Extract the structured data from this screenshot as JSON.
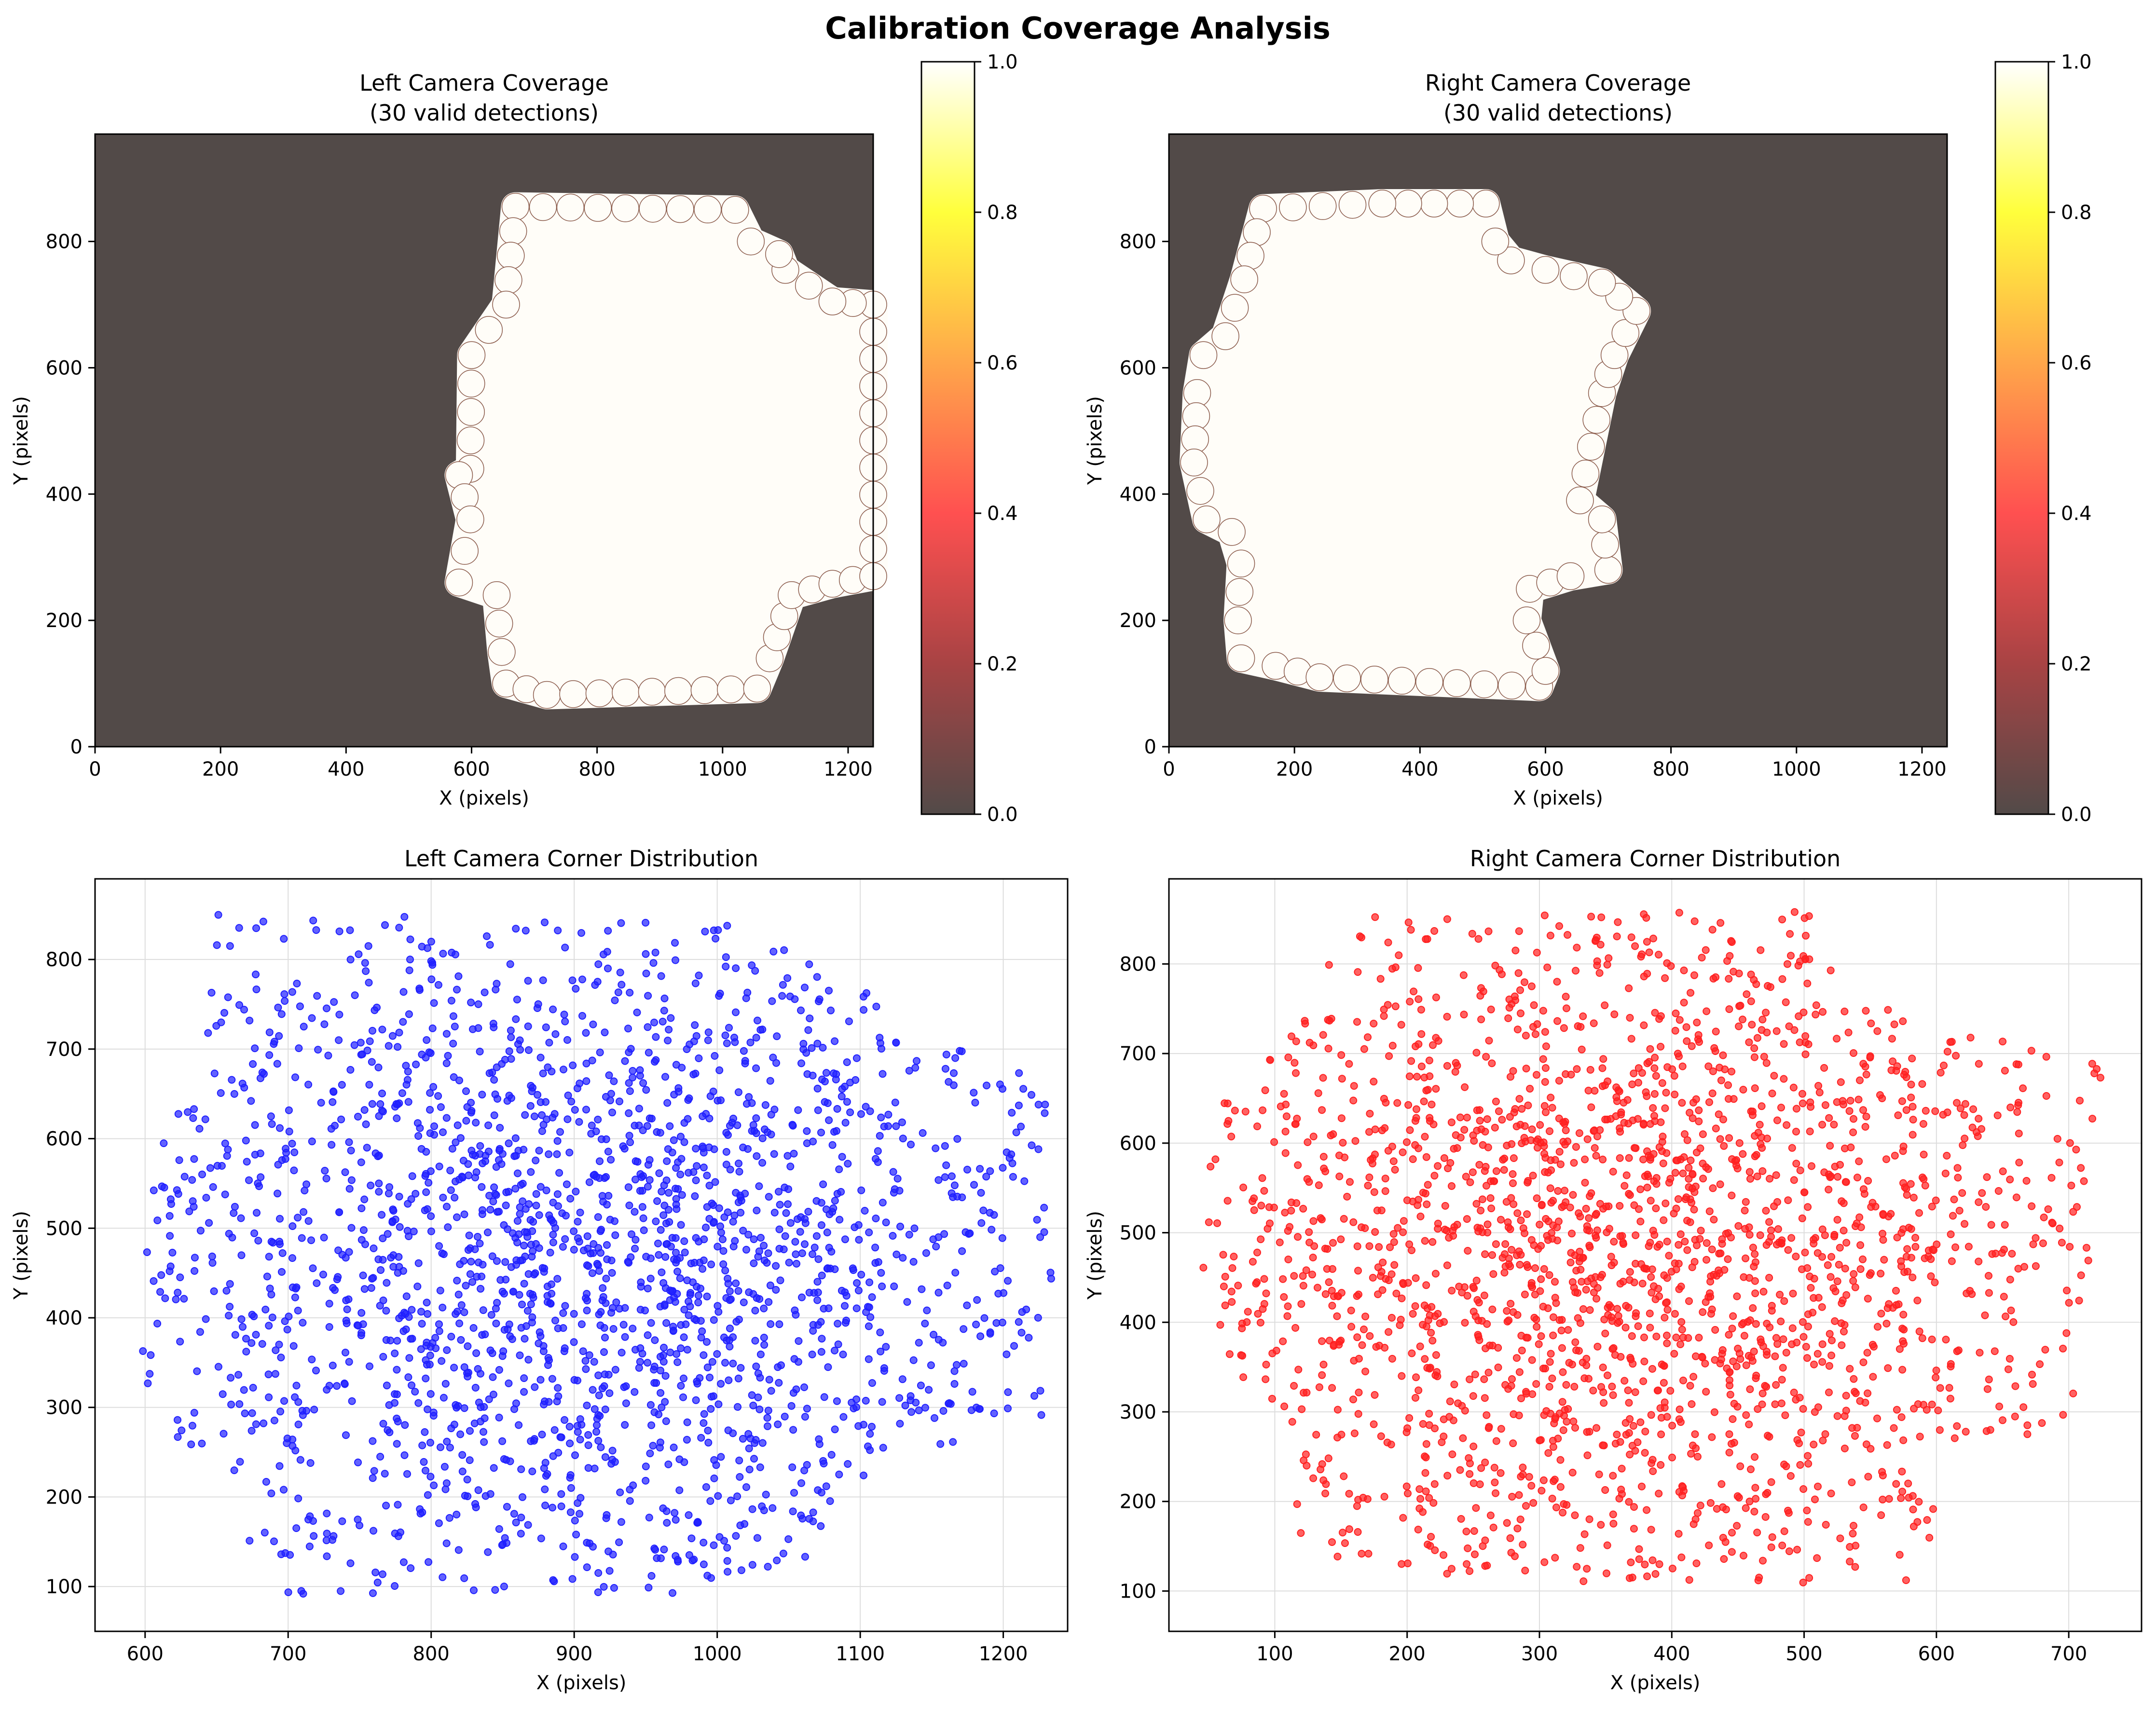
{
  "figure": {
    "suptitle": "Calibration Coverage Analysis"
  },
  "colors": {
    "background_dark": "#524a48",
    "coverage_fill": "#fffdf8",
    "left_points": "#1f1fff",
    "right_points": "#ff2020",
    "grid": "#dddddd",
    "colormap": [
      "#524a48",
      "#a84344",
      "#ff5050",
      "#ffa64a",
      "#ffff3c",
      "#ffffff"
    ]
  },
  "chart_data": [
    {
      "id": "left-coverage",
      "type": "heatmap",
      "title_line1": "Left Camera Coverage",
      "title_line2": "(30 valid detections)",
      "xlabel": "X (pixels)",
      "ylabel": "Y (pixels)",
      "xlim": [
        0,
        1240
      ],
      "ylim": [
        970,
        0
      ],
      "xticks": [
        0,
        200,
        400,
        600,
        800,
        1000,
        1200
      ],
      "yticks": [
        0,
        200,
        400,
        600,
        800
      ],
      "colorbar": {
        "ticks": [
          "0.0",
          "0.2",
          "0.4",
          "0.6",
          "0.8",
          "1.0"
        ],
        "range": [
          0,
          1
        ]
      },
      "coverage_polygon": [
        [
          655,
          100
        ],
        [
          720,
          82
        ],
        [
          1055,
          92
        ],
        [
          1075,
          140
        ],
        [
          1110,
          240
        ],
        [
          1175,
          258
        ],
        [
          1240,
          270
        ],
        [
          1240,
          700
        ],
        [
          1175,
          705
        ],
        [
          1100,
          755
        ],
        [
          1090,
          780
        ],
        [
          1045,
          800
        ],
        [
          1020,
          850
        ],
        [
          670,
          855
        ],
        [
          655,
          700
        ],
        [
          600,
          620
        ],
        [
          598,
          440
        ],
        [
          580,
          430
        ],
        [
          598,
          360
        ],
        [
          580,
          260
        ],
        [
          640,
          240
        ],
        [
          648,
          150
        ]
      ]
    },
    {
      "id": "right-coverage",
      "type": "heatmap",
      "title_line1": "Right Camera Coverage",
      "title_line2": "(30 valid detections)",
      "xlabel": "X (pixels)",
      "ylabel": "Y (pixels)",
      "xlim": [
        0,
        1240
      ],
      "ylim": [
        970,
        0
      ],
      "xticks": [
        0,
        200,
        400,
        600,
        800,
        1000,
        1200
      ],
      "yticks": [
        0,
        200,
        400,
        600,
        800
      ],
      "colorbar": {
        "ticks": [
          "0.0",
          "0.2",
          "0.4",
          "0.6",
          "0.8",
          "1.0"
        ],
        "range": [
          0,
          1
        ]
      },
      "coverage_polygon": [
        [
          115,
          140
        ],
        [
          170,
          128
        ],
        [
          240,
          110
        ],
        [
          590,
          95
        ],
        [
          600,
          120
        ],
        [
          570,
          200
        ],
        [
          575,
          250
        ],
        [
          640,
          270
        ],
        [
          700,
          280
        ],
        [
          690,
          360
        ],
        [
          655,
          390
        ],
        [
          690,
          560
        ],
        [
          710,
          620
        ],
        [
          745,
          690
        ],
        [
          690,
          735
        ],
        [
          600,
          755
        ],
        [
          545,
          770
        ],
        [
          520,
          800
        ],
        [
          505,
          860
        ],
        [
          340,
          860
        ],
        [
          150,
          852
        ],
        [
          120,
          740
        ],
        [
          90,
          650
        ],
        [
          55,
          620
        ],
        [
          45,
          560
        ],
        [
          40,
          450
        ],
        [
          60,
          360
        ],
        [
          100,
          340
        ],
        [
          115,
          290
        ],
        [
          110,
          200
        ]
      ]
    },
    {
      "id": "left-scatter",
      "type": "scatter",
      "title": "Left Camera Corner Distribution",
      "xlabel": "X (pixels)",
      "ylabel": "Y (pixels)",
      "xlim": [
        565,
        1245
      ],
      "ylim": [
        890,
        50
      ],
      "xticks": [
        600,
        700,
        800,
        900,
        1000,
        1100,
        1200
      ],
      "yticks": [
        100,
        200,
        300,
        400,
        500,
        600,
        700,
        800
      ],
      "n_points": 2160,
      "region_polygon": [
        [
          595,
          260
        ],
        [
          660,
          245
        ],
        [
          670,
          100
        ],
        [
          730,
          85
        ],
        [
          1050,
          95
        ],
        [
          1110,
          240
        ],
        [
          1170,
          258
        ],
        [
          1235,
          290
        ],
        [
          1232,
          670
        ],
        [
          1170,
          705
        ],
        [
          1090,
          780
        ],
        [
          1010,
          840
        ],
        [
          650,
          852
        ],
        [
          640,
          640
        ],
        [
          608,
          630
        ],
        [
          595,
          430
        ]
      ],
      "density_center": [
        920,
        470
      ]
    },
    {
      "id": "right-scatter",
      "type": "scatter",
      "title": "Right Camera Corner Distribution",
      "xlabel": "X (pixels)",
      "ylabel": "Y (pixels)",
      "xlim": [
        20,
        755
      ],
      "ylim": [
        895,
        55
      ],
      "xticks": [
        100,
        200,
        300,
        400,
        500,
        600,
        700
      ],
      "yticks": [
        100,
        200,
        300,
        400,
        500,
        600,
        700,
        800
      ],
      "n_points": 2160,
      "region_polygon": [
        [
          120,
          140
        ],
        [
          240,
          115
        ],
        [
          590,
          97
        ],
        [
          600,
          120
        ],
        [
          600,
          255
        ],
        [
          700,
          280
        ],
        [
          720,
          460
        ],
        [
          735,
          690
        ],
        [
          700,
          700
        ],
        [
          600,
          745
        ],
        [
          540,
          770
        ],
        [
          505,
          860
        ],
        [
          200,
          856
        ],
        [
          155,
          850
        ],
        [
          95,
          700
        ],
        [
          50,
          640
        ],
        [
          45,
          460
        ],
        [
          55,
          360
        ],
        [
          110,
          290
        ]
      ],
      "density_center": [
        360,
        480
      ]
    }
  ]
}
